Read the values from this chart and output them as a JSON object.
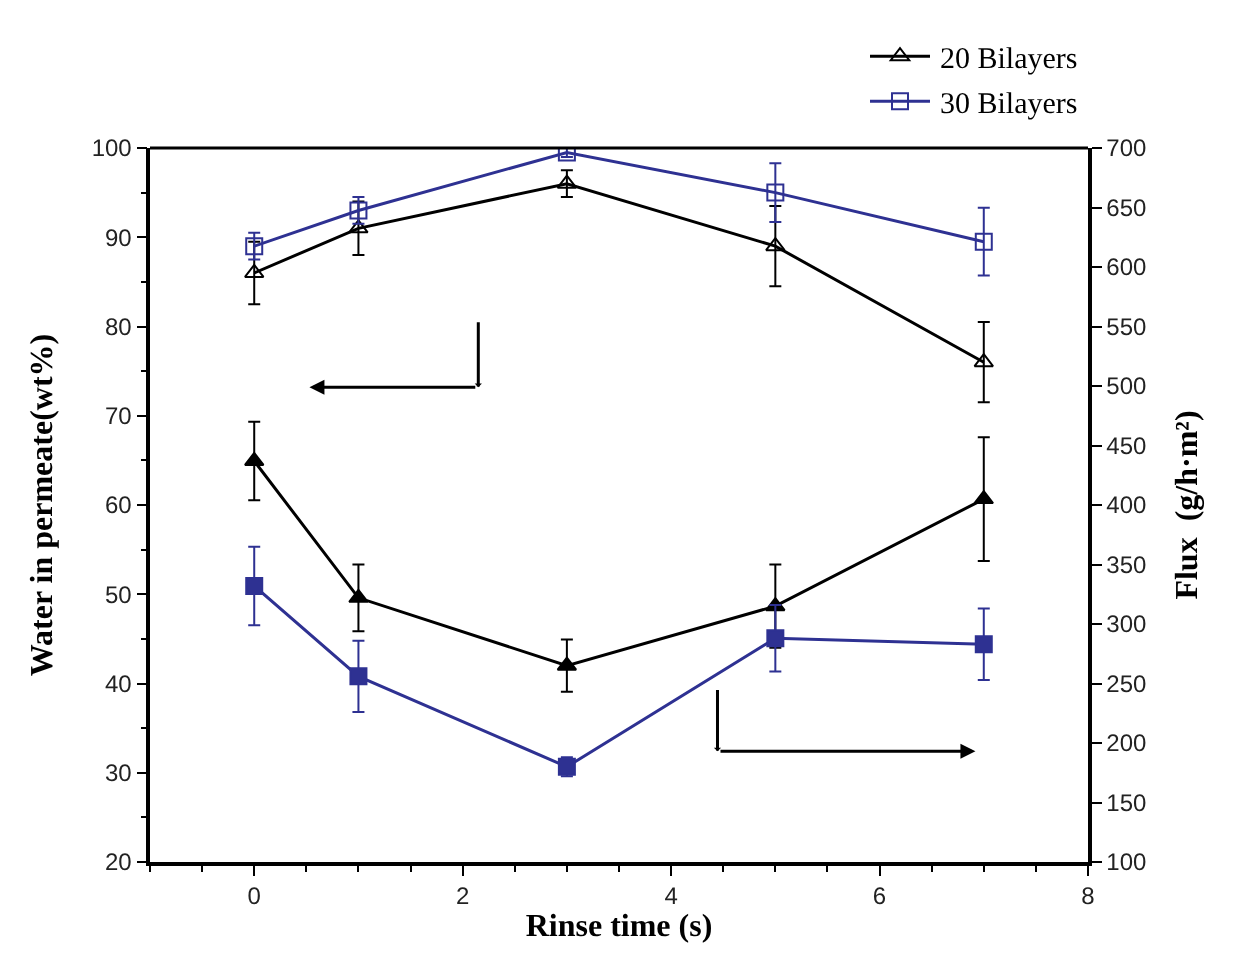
{
  "chart_data": {
    "type": "line",
    "xlabel": "Rinse time (s)",
    "ylabel": "Water in permeate(wt%)",
    "y2label": "Flux  (g/h·m²)",
    "xlim": [
      -1,
      8
    ],
    "xticks": [
      0,
      2,
      4,
      6,
      8
    ],
    "ylim": [
      20,
      100
    ],
    "yticks": [
      20,
      30,
      40,
      50,
      60,
      70,
      80,
      90,
      100
    ],
    "y2lim": [
      100,
      700
    ],
    "y2ticks": [
      100,
      150,
      200,
      250,
      300,
      350,
      400,
      450,
      500,
      550,
      600,
      650,
      700
    ],
    "x": [
      0,
      1,
      3,
      5,
      7
    ],
    "legend": "top right",
    "line_style": "solid",
    "series": [
      {
        "name": "20 Bilayers",
        "color": "#000000",
        "marker": "triangle",
        "values": [
          86,
          91,
          96,
          89,
          76
        ],
        "errors": [
          3.5,
          3,
          1.5,
          4.5,
          4.5
        ]
      },
      {
        "name": "30 Bilayers",
        "color": "#2e3192",
        "marker": "square",
        "values": [
          89,
          93,
          99.5,
          95,
          89.5
        ],
        "errors": [
          1.5,
          1.5,
          0.5,
          3.3,
          3.8
        ]
      },
      {
        "color": "#000000",
        "marker": "triangle",
        "axis": "y2",
        "values": [
          437,
          322,
          265,
          315,
          405
        ],
        "errors": [
          33,
          28,
          22,
          35,
          52
        ]
      },
      {
        "color": "#2e3192",
        "marker": "square",
        "axis": "y2",
        "values": [
          332,
          256,
          180,
          288,
          283
        ],
        "errors": [
          33,
          30,
          8,
          28,
          30
        ]
      }
    ]
  }
}
